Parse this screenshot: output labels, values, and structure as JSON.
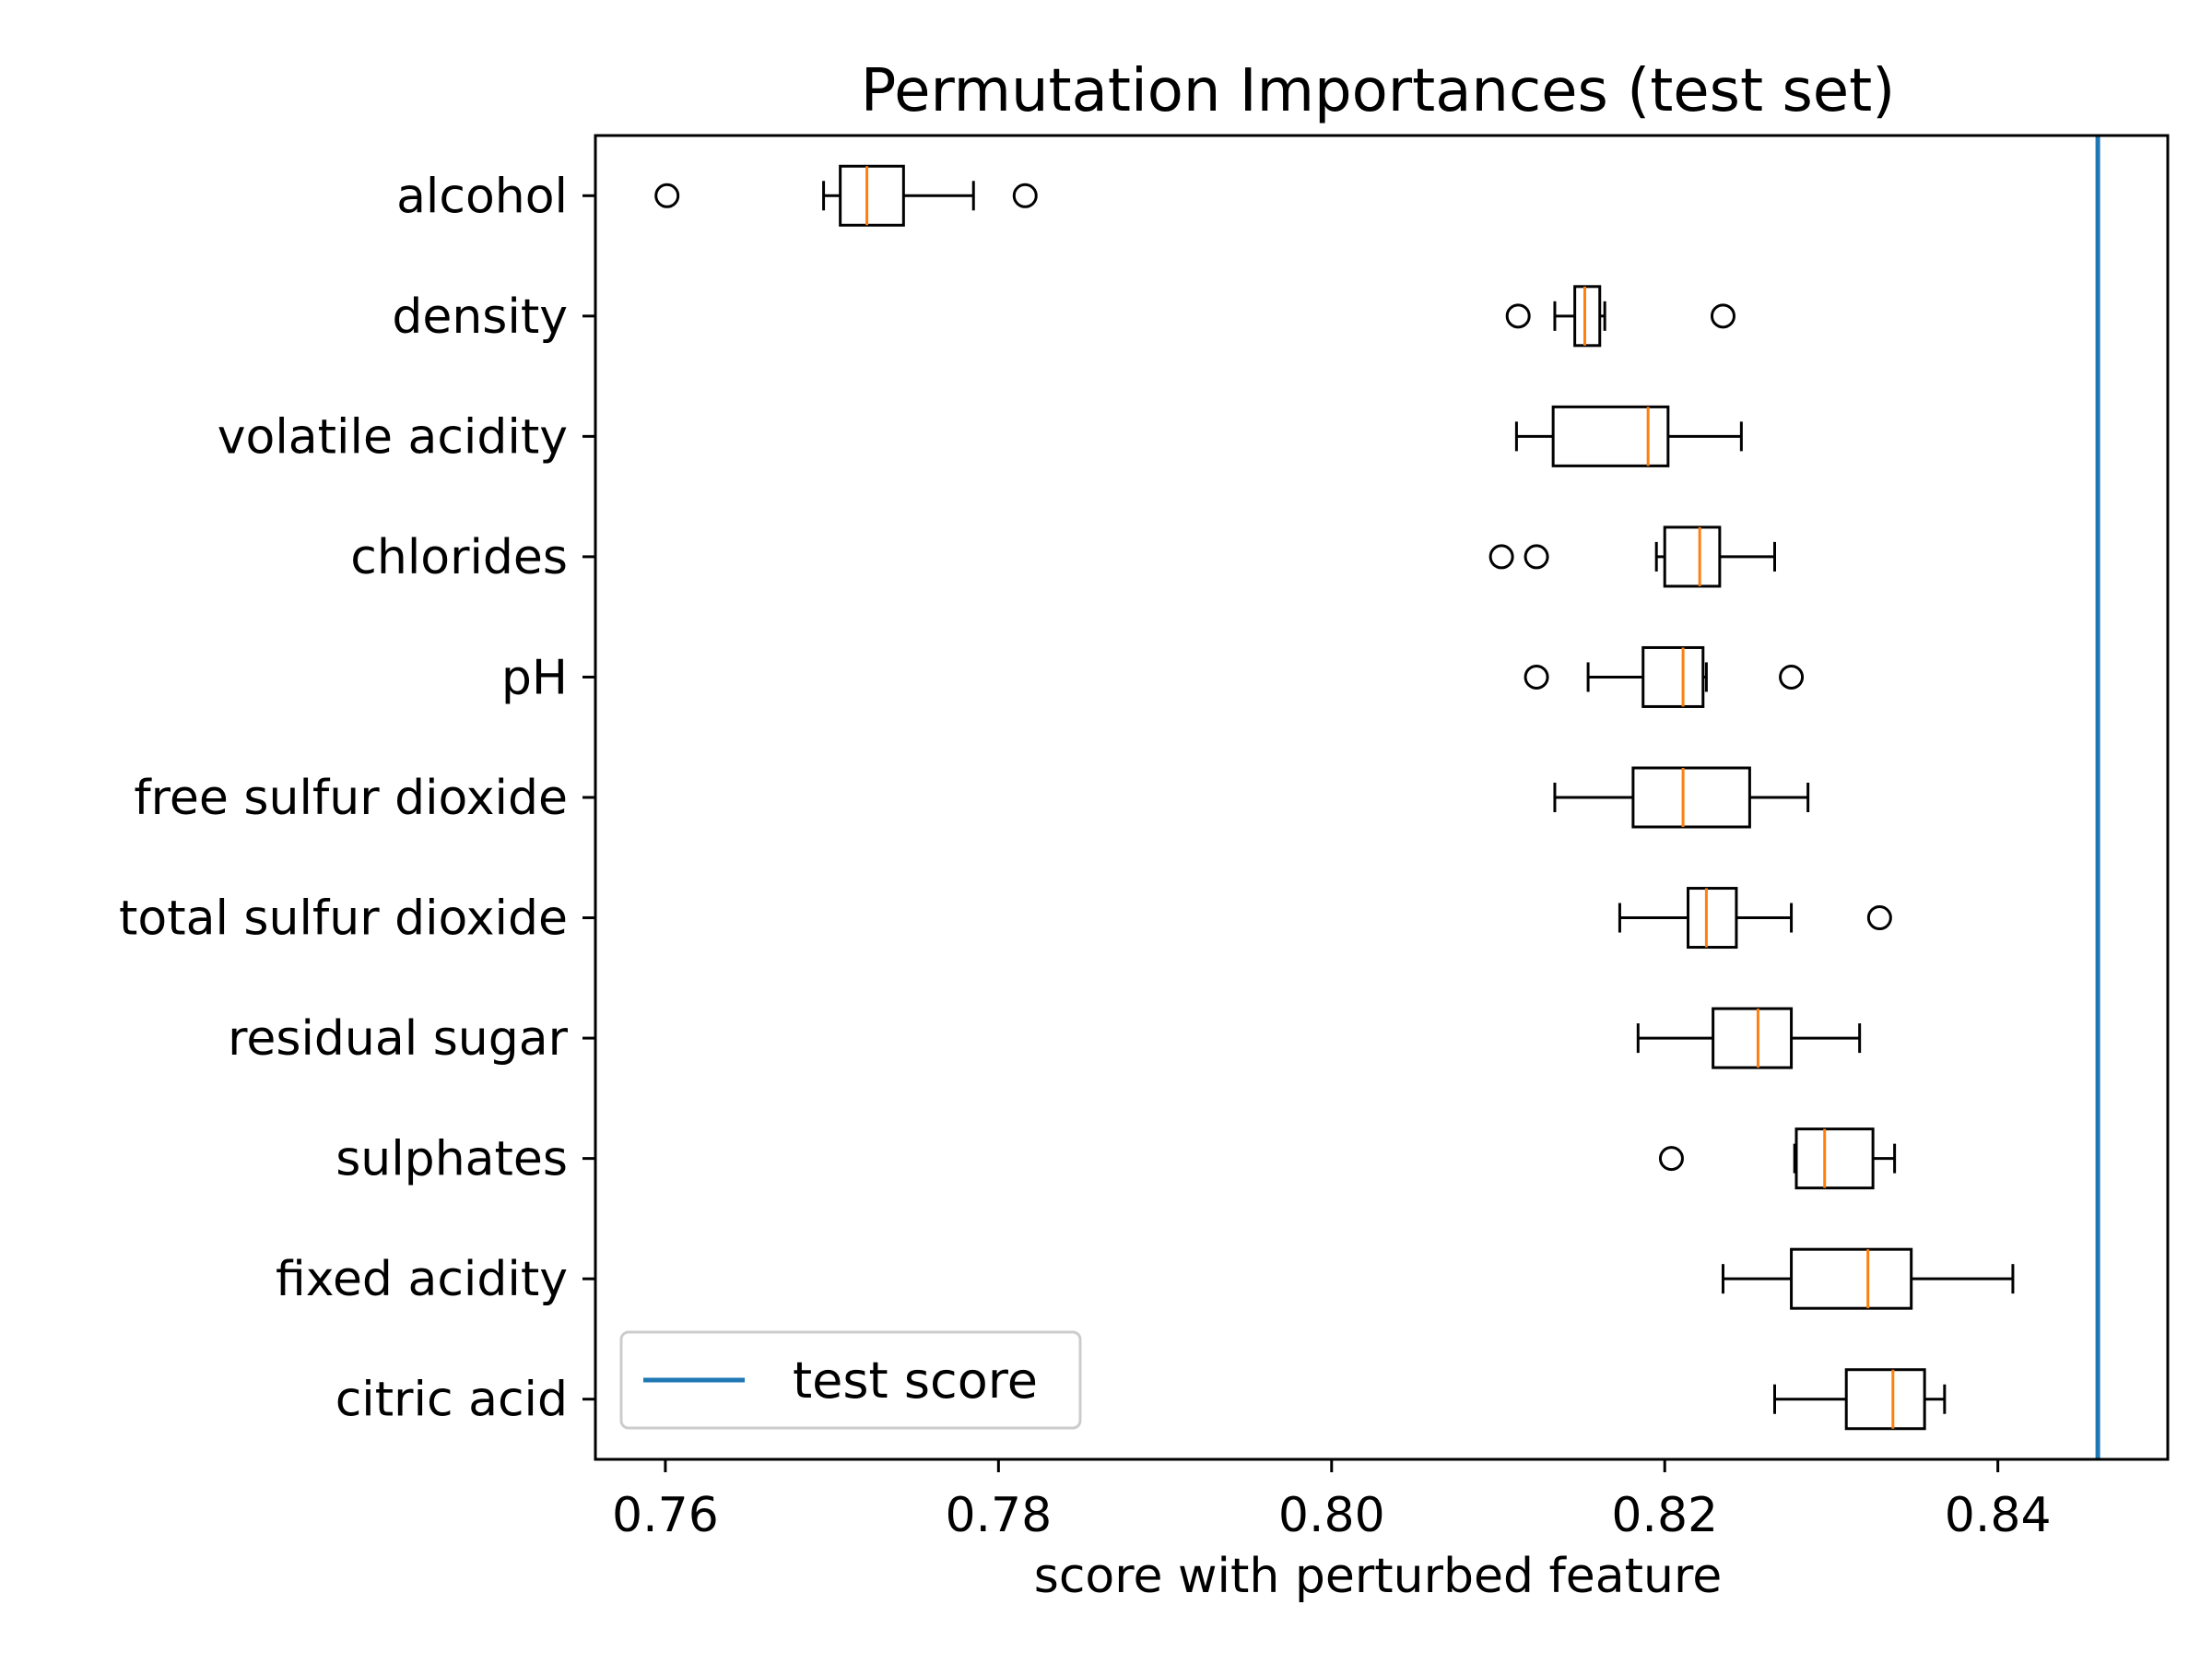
{
  "chart_data": {
    "type": "boxplot",
    "orientation": "horizontal",
    "title": "Permutation Importances (test set)",
    "xlabel": "score with perturbed feature",
    "ylabel": "",
    "xlim": [
      0.7558,
      0.8502
    ],
    "xticks": [
      {
        "value": 0.76,
        "label": "0.76"
      },
      {
        "value": 0.78,
        "label": "0.78"
      },
      {
        "value": 0.8,
        "label": "0.80"
      },
      {
        "value": 0.82,
        "label": "0.82"
      },
      {
        "value": 0.84,
        "label": "0.84"
      }
    ],
    "grid": false,
    "legend": {
      "position": "bottom-left",
      "entries": [
        {
          "label": "test score",
          "color": "#1f77b4"
        }
      ]
    },
    "test_score": 0.846,
    "colors": {
      "median": "#ff7f0e",
      "box": "#000000",
      "test_line": "#1f77b4"
    },
    "features": [
      {
        "name": "alcohol",
        "whisker_low": 0.7695,
        "q1": 0.7705,
        "median": 0.7721,
        "q3": 0.7743,
        "whisker_high": 0.7785,
        "outliers": [
          0.7601,
          0.7816
        ]
      },
      {
        "name": "density",
        "whisker_low": 0.8134,
        "q1": 0.8146,
        "median": 0.8152,
        "q3": 0.8161,
        "whisker_high": 0.8164,
        "outliers": [
          0.8112,
          0.8235
        ]
      },
      {
        "name": "volatile acidity",
        "whisker_low": 0.8111,
        "q1": 0.8133,
        "median": 0.819,
        "q3": 0.8202,
        "whisker_high": 0.8246,
        "outliers": []
      },
      {
        "name": "chlorides",
        "whisker_low": 0.8195,
        "q1": 0.82,
        "median": 0.8221,
        "q3": 0.8233,
        "whisker_high": 0.8266,
        "outliers": [
          0.8102,
          0.8123
        ]
      },
      {
        "name": "pH",
        "whisker_low": 0.8154,
        "q1": 0.8187,
        "median": 0.8211,
        "q3": 0.8223,
        "whisker_high": 0.8225,
        "outliers": [
          0.8123,
          0.8276
        ]
      },
      {
        "name": "free sulfur dioxide",
        "whisker_low": 0.8134,
        "q1": 0.8181,
        "median": 0.8211,
        "q3": 0.8251,
        "whisker_high": 0.8286,
        "outliers": []
      },
      {
        "name": "total sulfur dioxide",
        "whisker_low": 0.8173,
        "q1": 0.8214,
        "median": 0.8225,
        "q3": 0.8243,
        "whisker_high": 0.8276,
        "outliers": [
          0.8329
        ]
      },
      {
        "name": "residual sugar",
        "whisker_low": 0.8184,
        "q1": 0.8229,
        "median": 0.8256,
        "q3": 0.8276,
        "whisker_high": 0.8317,
        "outliers": []
      },
      {
        "name": "sulphates",
        "whisker_low": 0.8278,
        "q1": 0.8279,
        "median": 0.8296,
        "q3": 0.8325,
        "whisker_high": 0.8338,
        "outliers": [
          0.8204
        ]
      },
      {
        "name": "fixed acidity",
        "whisker_low": 0.8235,
        "q1": 0.8276,
        "median": 0.8322,
        "q3": 0.8348,
        "whisker_high": 0.8409,
        "outliers": []
      },
      {
        "name": "citric acid",
        "whisker_low": 0.8266,
        "q1": 0.8309,
        "median": 0.8337,
        "q3": 0.8356,
        "whisker_high": 0.8368,
        "outliers": []
      }
    ]
  }
}
